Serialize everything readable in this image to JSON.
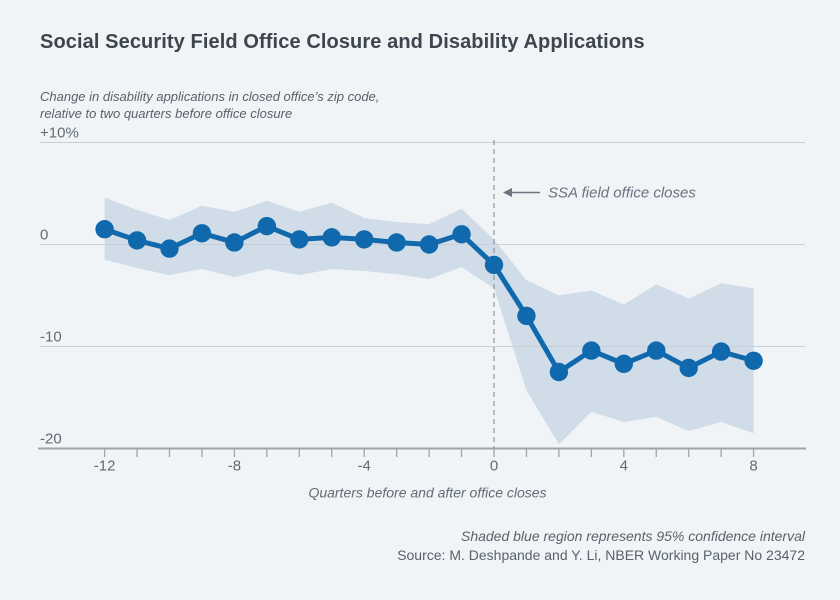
{
  "page": {
    "background": "#f0f4f7"
  },
  "header": {
    "title": "Social Security Field Office Closure and Disability Applications"
  },
  "subtitle": {
    "line1": "Change in disability applications in closed office’s zip code,",
    "line2": "relative to two quarters before office closure"
  },
  "chart_data": {
    "type": "line",
    "x": [
      -12,
      -11,
      -10,
      -9,
      -8,
      -7,
      -6,
      -5,
      -4,
      -3,
      -2,
      -1,
      0,
      1,
      2,
      3,
      4,
      5,
      6,
      7,
      8
    ],
    "series": [
      {
        "name": "Change in disability applications (%)",
        "values": [
          1.5,
          0.4,
          -0.4,
          1.1,
          0.2,
          1.8,
          0.5,
          0.7,
          0.5,
          0.2,
          0.0,
          1.0,
          -2.0,
          -7.0,
          -12.5,
          -10.4,
          -11.7,
          -10.4,
          -12.1,
          -10.5,
          -11.4
        ]
      }
    ],
    "band": {
      "name": "95% confidence interval",
      "upper": [
        4.6,
        3.4,
        2.4,
        3.8,
        3.2,
        4.3,
        3.2,
        4.1,
        2.6,
        2.2,
        2.0,
        3.5,
        0.5,
        -3.5,
        -5.0,
        -4.5,
        -5.9,
        -3.9,
        -5.3,
        -3.8,
        -4.3
      ],
      "lower": [
        -1.5,
        -2.3,
        -3.0,
        -2.4,
        -3.2,
        -2.4,
        -3.0,
        -2.4,
        -2.6,
        -2.9,
        -3.4,
        -2.2,
        -4.3,
        -14.3,
        -19.6,
        -16.4,
        -17.4,
        -16.9,
        -18.3,
        -17.4,
        -18.5
      ]
    },
    "y_ticks": [
      {
        "value": 10,
        "label": "+10%"
      },
      {
        "value": 0,
        "label": "0"
      },
      {
        "value": -10,
        "label": "-10"
      },
      {
        "value": -20,
        "label": "-20"
      }
    ],
    "x_tick_labels": [
      "-12",
      "-8",
      "-4",
      "0",
      "4",
      "8"
    ],
    "x_tick_label_values": [
      -12,
      -8,
      -4,
      0,
      4,
      8
    ],
    "xlabel": "Quarters before and after office closes",
    "annotation": {
      "text": "SSA field office closes",
      "points_to_x": 0
    },
    "event_line_x": 0,
    "ylim": [
      -20,
      10
    ],
    "xlim": [
      -12,
      8
    ],
    "grid": true,
    "colors": {
      "line": "#1068ad",
      "band": "#d0dce8",
      "grid": "#c9cfd6",
      "axis": "#9ca5ad",
      "dashed_line": "#8d959d",
      "tick_text": "#626b75",
      "annotation": "#6b7280"
    }
  },
  "footer": {
    "note": "Shaded blue region represents 95% confidence interval",
    "source": "Source: M. Deshpande and Y. Li, NBER Working Paper No 23472"
  }
}
